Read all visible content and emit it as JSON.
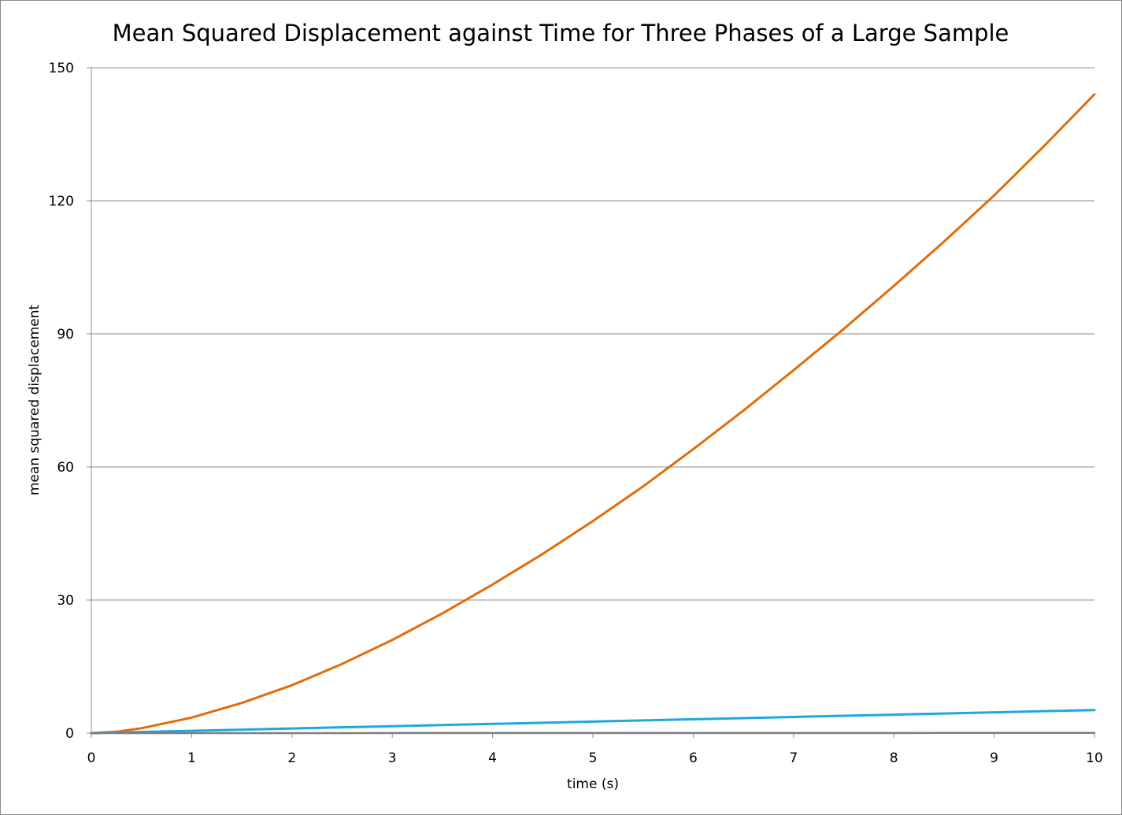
{
  "chart_data": {
    "type": "line",
    "title": "Mean Squared Displacement against Time for Three Phases of a Large Sample",
    "xlabel": "time (s)",
    "ylabel": "mean squared displacement",
    "xlim": [
      0,
      10
    ],
    "ylim": [
      0,
      150
    ],
    "x_ticks": [
      "0",
      "1",
      "2",
      "3",
      "4",
      "5",
      "6",
      "7",
      "8",
      "9",
      "10"
    ],
    "y_ticks": [
      "0",
      "30",
      "60",
      "90",
      "120",
      "150"
    ],
    "grid": true,
    "legend": "none",
    "x": [
      0,
      0.25,
      0.5,
      1,
      1.5,
      2,
      2.5,
      3,
      3.5,
      4,
      4.5,
      5,
      5.5,
      6,
      6.5,
      7,
      7.5,
      8,
      8.5,
      9,
      9.5,
      10
    ],
    "series": [
      {
        "color": "#E36C09",
        "values": [
          0,
          0.3,
          1.1,
          3.5,
          6.8,
          10.8,
          15.6,
          21.0,
          27.0,
          33.5,
          40.4,
          47.8,
          55.6,
          64.0,
          72.7,
          81.8,
          91.1,
          100.8,
          110.8,
          121.2,
          132.4,
          144.0
        ]
      },
      {
        "color": "#1EA7E1",
        "values": [
          0,
          0.13,
          0.26,
          0.52,
          0.78,
          1.04,
          1.3,
          1.56,
          1.82,
          2.08,
          2.34,
          2.6,
          2.86,
          3.12,
          3.38,
          3.64,
          3.9,
          4.16,
          4.42,
          4.68,
          4.94,
          5.2
        ]
      },
      {
        "color": "#7F7F7F",
        "values": [
          0,
          0.001,
          0.002,
          0.004,
          0.006,
          0.008,
          0.01,
          0.012,
          0.014,
          0.016,
          0.018,
          0.02,
          0.022,
          0.024,
          0.026,
          0.028,
          0.03,
          0.032,
          0.034,
          0.036,
          0.038,
          0.04
        ]
      }
    ]
  }
}
